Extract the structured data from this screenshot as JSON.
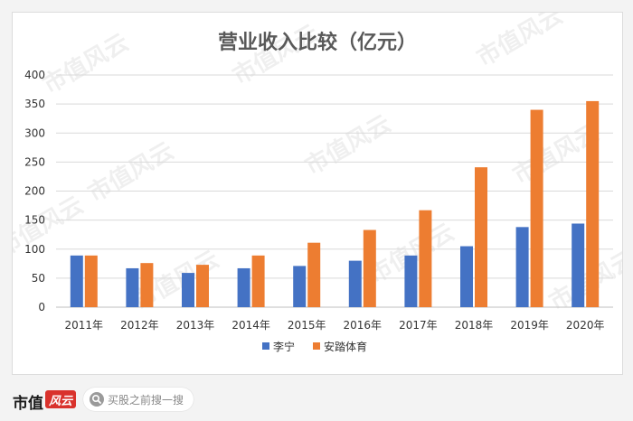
{
  "chart_data": {
    "type": "bar",
    "title": "营业收入比较（亿元）",
    "categories": [
      "2011年",
      "2012年",
      "2013年",
      "2014年",
      "2015年",
      "2016年",
      "2017年",
      "2018年",
      "2019年",
      "2020年"
    ],
    "series": [
      {
        "name": "李宁",
        "color": "#4472c4",
        "values": [
          89,
          67,
          59,
          67,
          71,
          80,
          89,
          105,
          138,
          144
        ]
      },
      {
        "name": "安踏体育",
        "color": "#ed7d31",
        "values": [
          89,
          76,
          73,
          89,
          111,
          133,
          167,
          241,
          340,
          355
        ]
      }
    ],
    "ylim": [
      0,
      400
    ],
    "yticks": [
      0,
      50,
      100,
      150,
      200,
      250,
      300,
      350,
      400
    ],
    "grid": true,
    "legend": "bottom"
  },
  "watermark": "市值风云",
  "footer": {
    "brand": "市值",
    "brand_mark": "风云",
    "search_text": "买股之前搜一搜"
  }
}
